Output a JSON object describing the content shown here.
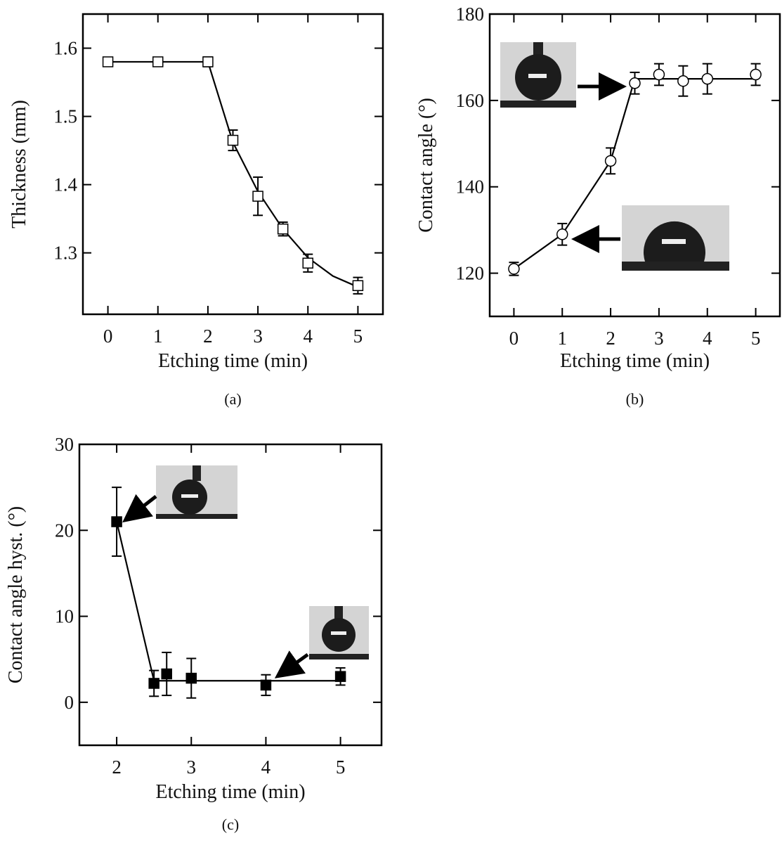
{
  "chart_data": [
    {
      "type": "scatter",
      "caption": "(a)",
      "xlabel": "Etching time (min)",
      "ylabel": "Thickness (mm)",
      "x": [
        0,
        1,
        2,
        2.5,
        3,
        3.5,
        4,
        5
      ],
      "values": [
        1.58,
        1.58,
        1.58,
        1.465,
        1.383,
        1.335,
        1.285,
        1.252
      ],
      "errors": [
        0.005,
        0.005,
        0.007,
        0.015,
        0.028,
        0.01,
        0.013,
        0.012
      ],
      "fit": {
        "x": [
          0,
          2,
          2.5,
          3,
          3.5,
          4,
          4.5,
          5
        ],
        "values": [
          1.58,
          1.58,
          1.462,
          1.39,
          1.335,
          1.293,
          1.266,
          1.25
        ]
      },
      "marker": "square",
      "marker_filled": false,
      "color": "#000000",
      "xlim": [
        -0.5,
        5.5
      ],
      "ylim": [
        1.21,
        1.65
      ],
      "xticks": [
        0,
        1,
        2,
        3,
        4,
        5
      ],
      "yticks": [
        1.3,
        1.4,
        1.5,
        1.6
      ]
    },
    {
      "type": "scatter",
      "caption": "(b)",
      "xlabel": "Etching time (min)",
      "ylabel": "Contact angle (°)",
      "x": [
        0,
        1,
        2,
        2.5,
        3,
        3.5,
        4,
        5
      ],
      "values": [
        121,
        129,
        146,
        164,
        166,
        164.5,
        165,
        166
      ],
      "errors": [
        1.5,
        2.5,
        3,
        2.5,
        2.5,
        3.5,
        3.5,
        2.5
      ],
      "fit": {
        "x": [
          0,
          1,
          2,
          2.5,
          5
        ],
        "values": [
          121,
          129,
          146,
          165,
          165
        ]
      },
      "marker": "circle",
      "marker_filled": false,
      "color": "#000000",
      "xlim": [
        -0.5,
        5.5
      ],
      "ylim": [
        110,
        180
      ],
      "xticks": [
        0,
        1,
        2,
        3,
        4,
        5
      ],
      "yticks": [
        120,
        140,
        160,
        180
      ]
    },
    {
      "type": "scatter",
      "caption": "(c)",
      "xlabel": "Etching time (min)",
      "ylabel": "Contact angle hyst. (°)",
      "x": [
        2,
        2.5,
        2.67,
        3,
        4,
        5
      ],
      "values": [
        21,
        2.2,
        3.3,
        2.8,
        2,
        3
      ],
      "errors": [
        4,
        1.5,
        2.5,
        2.3,
        1.2,
        1
      ],
      "fit": {
        "x": [
          2,
          2.5,
          5
        ],
        "values": [
          21,
          2.5,
          2.5
        ]
      },
      "marker": "square",
      "marker_filled": true,
      "color": "#000000",
      "xlim": [
        1.5,
        5.55
      ],
      "ylim": [
        -5,
        30
      ],
      "xticks": [
        2,
        3,
        4,
        5
      ],
      "yticks": [
        0,
        10,
        20,
        30
      ]
    }
  ]
}
